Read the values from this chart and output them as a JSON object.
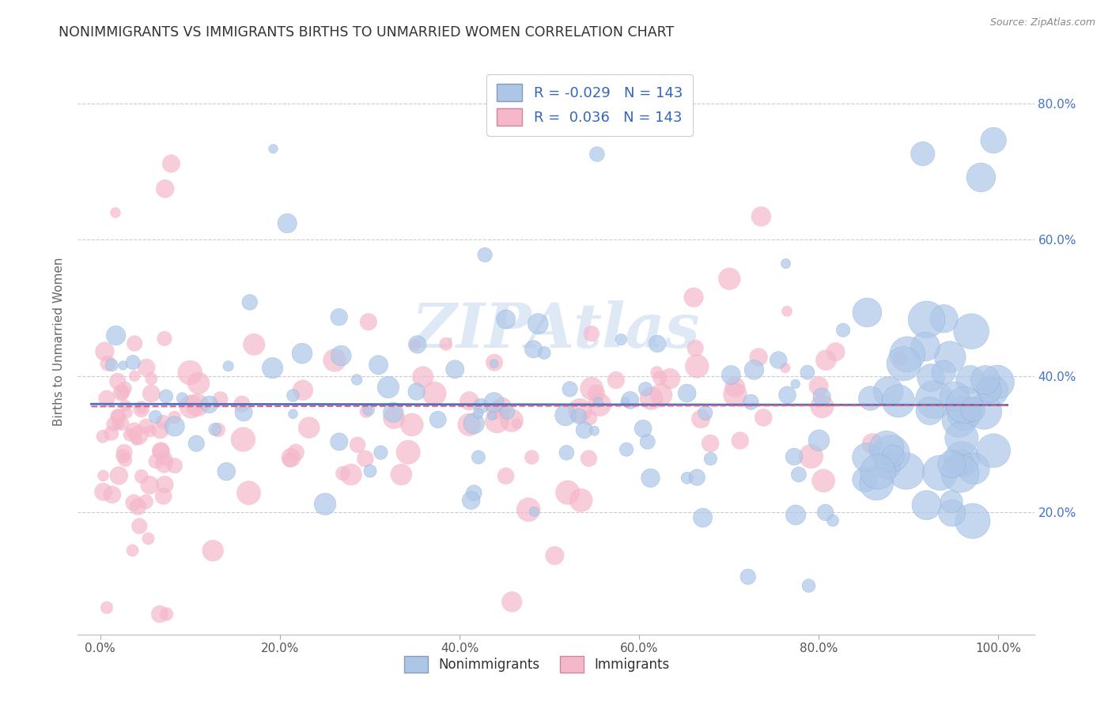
{
  "title": "NONIMMIGRANTS VS IMMIGRANTS BIRTHS TO UNMARRIED WOMEN CORRELATION CHART",
  "source": "Source: ZipAtlas.com",
  "ylabel": "Births to Unmarried Women",
  "R_nonimm": -0.029,
  "N_nonimm": 143,
  "R_imm": 0.036,
  "N_imm": 143,
  "color_nonimm": "#adc6e8",
  "color_imm": "#f5b8cb",
  "line_color_nonimm": "#4472c4",
  "line_color_imm": "#e8607a",
  "background_color": "#ffffff",
  "watermark": "ZIPAtlas",
  "legend_label_nonimm": "Nonimmigrants",
  "legend_label_imm": "Immigrants",
  "ytick_color": "#4472c4",
  "title_color": "#333333",
  "source_color": "#888888"
}
